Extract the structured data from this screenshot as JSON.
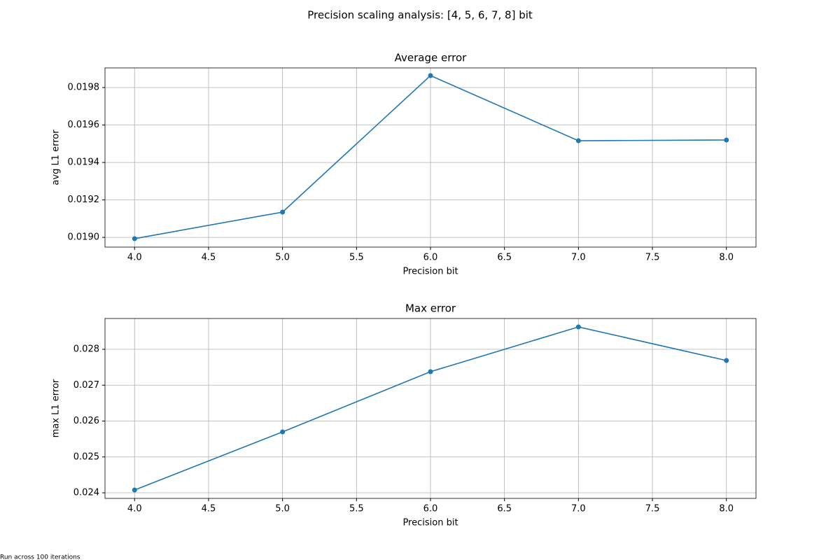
{
  "title": "Precision scaling analysis: [4, 5, 6, 7, 8] bit",
  "footnote": "Run across 100 iterations",
  "chart_data": [
    {
      "type": "line",
      "title": "Average error",
      "xlabel": "Precision bit",
      "ylabel": "avg L1 error",
      "x": [
        4,
        5,
        6,
        7,
        8
      ],
      "values": [
        0.018993,
        0.019135,
        0.019864,
        0.019516,
        0.01952
      ],
      "color": "#1f77b4",
      "xlim": [
        3.8,
        8.2
      ],
      "xticks": [
        {
          "value": 4,
          "label": "4.0"
        },
        {
          "value": 4.5,
          "label": "4.5"
        },
        {
          "value": 5,
          "label": "5.0"
        },
        {
          "value": 5.5,
          "label": "5.5"
        },
        {
          "value": 6,
          "label": "6.0"
        },
        {
          "value": 6.5,
          "label": "6.5"
        },
        {
          "value": 7,
          "label": "7.0"
        },
        {
          "value": 7.5,
          "label": "7.5"
        },
        {
          "value": 8,
          "label": "8.0"
        }
      ],
      "ylim": [
        0.018948,
        0.019905
      ],
      "yticks": [
        {
          "value": 0.019,
          "label": "0.0190"
        },
        {
          "value": 0.0192,
          "label": "0.0192"
        },
        {
          "value": 0.0194,
          "label": "0.0194"
        },
        {
          "value": 0.0196,
          "label": "0.0196"
        },
        {
          "value": 0.0198,
          "label": "0.0198"
        }
      ],
      "grid": true
    },
    {
      "type": "line",
      "title": "Max error",
      "xlabel": "Precision bit",
      "ylabel": "max L1 error",
      "x": [
        4,
        5,
        6,
        7,
        8
      ],
      "values": [
        0.024078,
        0.025698,
        0.027376,
        0.028624,
        0.027688
      ],
      "color": "#1f77b4",
      "xlim": [
        3.8,
        8.2
      ],
      "xticks": [
        {
          "value": 4,
          "label": "4.0"
        },
        {
          "value": 4.5,
          "label": "4.5"
        },
        {
          "value": 5,
          "label": "5.0"
        },
        {
          "value": 5.5,
          "label": "5.5"
        },
        {
          "value": 6,
          "label": "6.0"
        },
        {
          "value": 6.5,
          "label": "6.5"
        },
        {
          "value": 7,
          "label": "7.0"
        },
        {
          "value": 7.5,
          "label": "7.5"
        },
        {
          "value": 8,
          "label": "8.0"
        }
      ],
      "ylim": [
        0.023844,
        0.028859
      ],
      "yticks": [
        0.024,
        0.025,
        0.026,
        0.027,
        0.028
      ],
      "grid": true
    }
  ]
}
